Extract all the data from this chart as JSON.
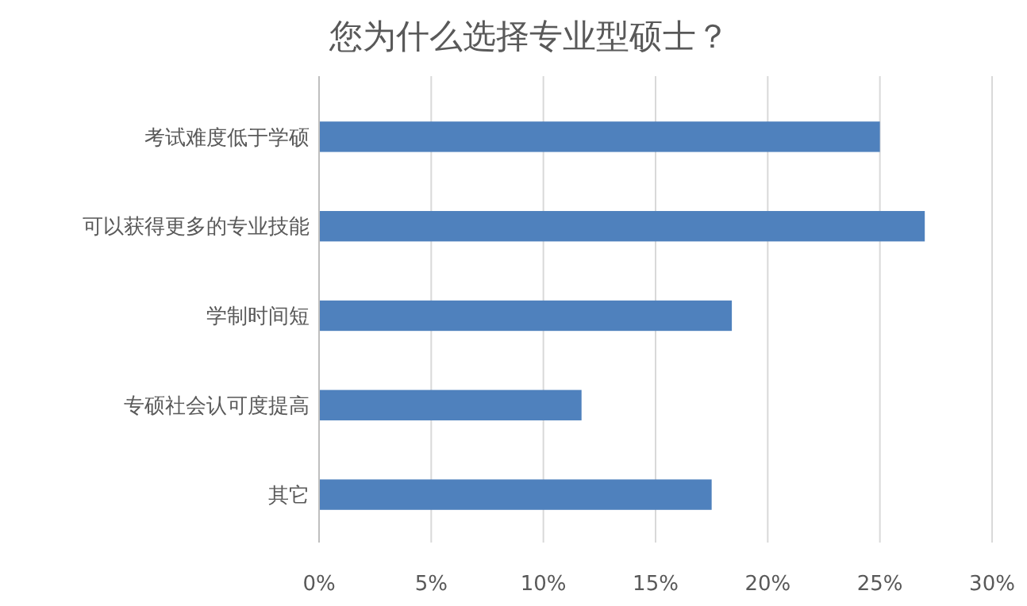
{
  "chart_data": {
    "type": "bar",
    "orientation": "horizontal",
    "title": "您为什么选择专业型硕士？",
    "categories": [
      "考试难度低于学硕",
      "可以获得更多的专业技能",
      "学制时间短",
      "专硕社会认可度提高",
      "其它"
    ],
    "values": [
      25,
      27,
      18.4,
      11.7,
      17.5
    ],
    "color": "#4f81bd",
    "xlim": [
      0,
      30
    ],
    "xticks": [
      {
        "value": 0,
        "label": "0%"
      },
      {
        "value": 5,
        "label": "5%"
      },
      {
        "value": 10,
        "label": "10%"
      },
      {
        "value": 15,
        "label": "15%"
      },
      {
        "value": 20,
        "label": "20%"
      },
      {
        "value": 25,
        "label": "25%"
      },
      {
        "value": 30,
        "label": "30%"
      }
    ],
    "grid": "x"
  }
}
